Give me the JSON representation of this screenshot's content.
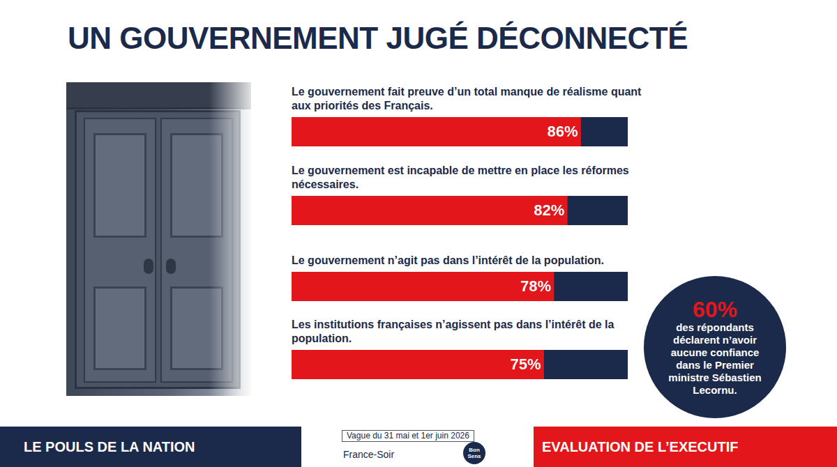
{
  "chart_data": {
    "type": "bar",
    "title": "UN GOUVERNEMENT JUGÉ DÉCONNECTÉ",
    "orientation": "horizontal",
    "categories": [
      "Le gouvernement fait preuve d’un total manque de réalisme quant aux priorités des Français.",
      "Le gouvernement est incapable de mettre en place les réformes nécessaires.",
      "Le gouvernement n’agit pas dans l’intérêt de la population.",
      "Les institutions françaises n’agissent pas dans l’intérêt de la population."
    ],
    "values": [
      86,
      82,
      78,
      75
    ],
    "value_labels": [
      "86%",
      "82%",
      "78%",
      "75%"
    ],
    "color": "#e3161c",
    "xlim": [
      0,
      100
    ],
    "tick_labels": false,
    "data_labels": true,
    "annotations": [
      {
        "label": "60%",
        "text": "des répondants déclarent n’avoir aucune confiance dans le Premier ministre Sébastien Lecornu."
      }
    ]
  },
  "footer": {
    "left": "LE POULS DE LA NATION",
    "center": [
      "Vague du 31 mai et 1er juin 2026",
      "France-Soir",
      "Bon Sens"
    ],
    "right": "EVALUATION DE L’EXECUTIF"
  }
}
